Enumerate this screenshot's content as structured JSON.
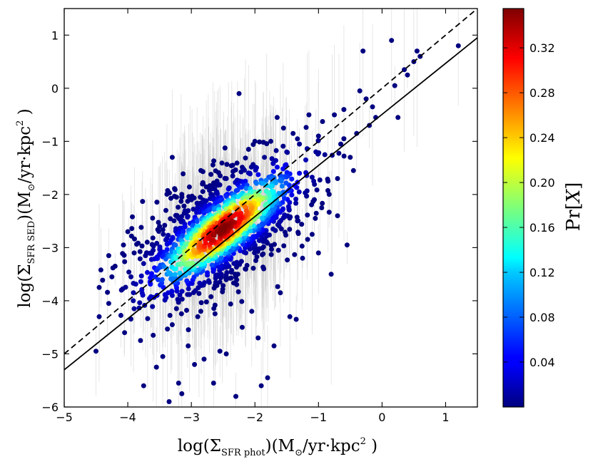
{
  "chart_data": {
    "type": "scatter",
    "title": "",
    "xlabel": {
      "prefix": "log(Σ",
      "sub": "SFR phot",
      "mid": ")(M",
      "sun": "⊙",
      "unit": "/yr·kpc",
      "sup": "2",
      "suffix": " )"
    },
    "ylabel": {
      "prefix": "log(Σ",
      "sub": "SFR SED",
      "mid": ")(M",
      "sun": "⊙",
      "unit": "/yr·kpc",
      "sup": "2",
      "suffix": " )"
    },
    "xlim": [
      -5,
      1.5
    ],
    "ylim": [
      -6,
      1.5
    ],
    "x_ticks": [
      -5,
      -4,
      -3,
      -2,
      -1,
      0,
      1
    ],
    "y_ticks": [
      -6,
      -5,
      -4,
      -3,
      -2,
      -1,
      0,
      1
    ],
    "x_tick_labels": [
      "−5",
      "−4",
      "−3",
      "−2",
      "−1",
      "0",
      "1"
    ],
    "y_tick_labels": [
      "−6",
      "−5",
      "−4",
      "−3",
      "−2",
      "−1",
      "0",
      "1"
    ],
    "colorbar": {
      "label": {
        "pre": "Pr[",
        "var": "X",
        "post": "]"
      },
      "min": 0.0,
      "max": 0.355,
      "ticks": [
        0.04,
        0.08,
        0.12,
        0.16,
        0.2,
        0.24,
        0.28,
        0.32
      ],
      "tick_labels": [
        "0.04",
        "0.08",
        "0.12",
        "0.16",
        "0.20",
        "0.24",
        "0.28",
        "0.32"
      ],
      "colormap": "jet"
    },
    "lines": [
      {
        "name": "one-to-one",
        "style": "dashed",
        "color": "#000000",
        "points": [
          [
            -5,
            -5
          ],
          [
            1.5,
            1.5
          ]
        ]
      },
      {
        "name": "best-fit",
        "style": "solid",
        "color": "#000000",
        "points": [
          [
            -5,
            -5.3
          ],
          [
            1.5,
            0.95
          ]
        ]
      }
    ],
    "density_model": {
      "center": [
        -2.5,
        -2.65
      ],
      "major_sigma": 0.75,
      "minor_sigma": 0.22,
      "angle_deg": 45,
      "peak_prob": 0.355
    },
    "outlier_points": [
      [
        -4.5,
        -4.95
      ],
      [
        -4.45,
        -4.3
      ],
      [
        -4.45,
        -3.75
      ],
      [
        -4.3,
        -4.05
      ],
      [
        -4.25,
        -3.55
      ],
      [
        -4.2,
        -3.35
      ],
      [
        -4.1,
        -3.8
      ],
      [
        -4.05,
        -4.6
      ],
      [
        -4.0,
        -2.7
      ],
      [
        -3.9,
        -4.15
      ],
      [
        -3.8,
        -4.75
      ],
      [
        -3.75,
        -5.6
      ],
      [
        -3.75,
        -3.3
      ],
      [
        -3.65,
        -3.95
      ],
      [
        -3.55,
        -5.25
      ],
      [
        -3.45,
        -5.05
      ],
      [
        -3.35,
        -5.9
      ],
      [
        -3.3,
        -1.3
      ],
      [
        -3.3,
        -4.45
      ],
      [
        -3.2,
        -5.55
      ],
      [
        -3.15,
        -5.75
      ],
      [
        -3.05,
        -4.85
      ],
      [
        -2.95,
        -5.2
      ],
      [
        -2.85,
        -1.55
      ],
      [
        -2.8,
        -5.1
      ],
      [
        -2.65,
        -5.55
      ],
      [
        -2.55,
        -4.95
      ],
      [
        -2.45,
        -5.0
      ],
      [
        -2.3,
        -5.8
      ],
      [
        -2.25,
        -0.1
      ],
      [
        -2.15,
        -1.75
      ],
      [
        -2.1,
        -1.15
      ],
      [
        -2.05,
        -4.2
      ],
      [
        -1.95,
        -4.7
      ],
      [
        -1.9,
        -5.6
      ],
      [
        -1.85,
        -1.3
      ],
      [
        -1.8,
        -5.45
      ],
      [
        -1.7,
        -4.85
      ],
      [
        -1.65,
        -0.55
      ],
      [
        -1.55,
        -0.75
      ],
      [
        -1.45,
        -4.3
      ],
      [
        -1.35,
        -4.35
      ],
      [
        -1.3,
        -1.05
      ],
      [
        -1.25,
        -3.2
      ],
      [
        -1.2,
        -1.35
      ],
      [
        -1.15,
        -0.5
      ],
      [
        -1.1,
        -2.75
      ],
      [
        -1.05,
        -2.45
      ],
      [
        -0.95,
        -2.25
      ],
      [
        -0.85,
        -1.75
      ],
      [
        -0.8,
        -3.5
      ],
      [
        -0.75,
        -0.5
      ],
      [
        -0.7,
        -2.4
      ],
      [
        -0.65,
        -1.05
      ],
      [
        -0.6,
        -0.95
      ],
      [
        -0.55,
        -2.95
      ],
      [
        -0.5,
        -1.3
      ],
      [
        -0.45,
        -1.55
      ],
      [
        -0.4,
        -0.85
      ],
      [
        -0.3,
        0.7
      ],
      [
        -0.25,
        -0.2
      ],
      [
        -0.2,
        -0.7
      ],
      [
        -0.15,
        -0.35
      ],
      [
        -0.1,
        -0.55
      ],
      [
        0.15,
        0.9
      ],
      [
        0.2,
        0.05
      ],
      [
        0.25,
        -0.55
      ],
      [
        0.35,
        0.35
      ],
      [
        0.5,
        0.5
      ],
      [
        0.55,
        0.7
      ],
      [
        0.6,
        0.6
      ],
      [
        1.2,
        0.8
      ],
      [
        0.4,
        0.25
      ],
      [
        -0.35,
        -0.05
      ],
      [
        -0.6,
        -0.4
      ],
      [
        -1.0,
        -0.9
      ],
      [
        -1.4,
        -0.85
      ],
      [
        -1.75,
        -1.0
      ],
      [
        -2.45,
        -1.7
      ],
      [
        -2.6,
        -1.95
      ],
      [
        -3.0,
        -2.1
      ],
      [
        -3.4,
        -2.3
      ],
      [
        -3.6,
        -3.05
      ],
      [
        -4.3,
        -3.15
      ],
      [
        -3.95,
        -3.55
      ],
      [
        -3.6,
        -4.65
      ],
      [
        -2.9,
        -4.3
      ],
      [
        -2.2,
        -4.5
      ],
      [
        -1.6,
        -3.85
      ],
      [
        -1.0,
        -3.1
      ],
      [
        -0.7,
        -1.7
      ],
      [
        -0.9,
        -1.25
      ],
      [
        -1.3,
        -1.6
      ],
      [
        -1.5,
        -1.2
      ],
      [
        -2.0,
        -1.0
      ],
      [
        -2.35,
        -1.45
      ],
      [
        -3.15,
        -2.05
      ],
      [
        -3.5,
        -2.6
      ],
      [
        -3.9,
        -3.1
      ],
      [
        -3.3,
        -3.9
      ]
    ]
  }
}
